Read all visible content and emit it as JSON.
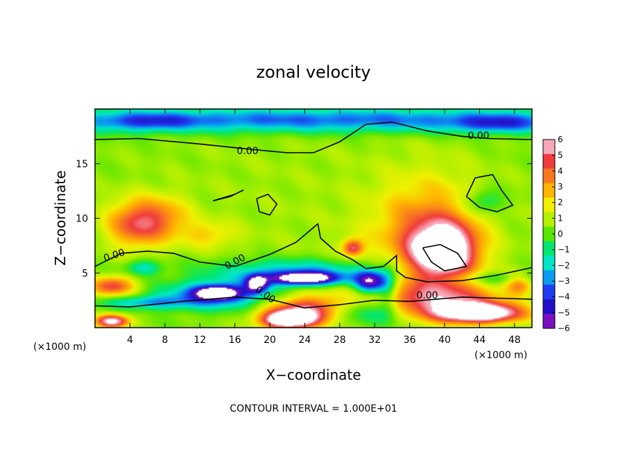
{
  "chart_data": {
    "type": "heatmap",
    "title": "zonal velocity",
    "xlabel": "X−coordinate",
    "ylabel": "Z−coordinate",
    "x_unit": "(×1000 m)",
    "y_unit": "(×1000 m)",
    "xlim": [
      0,
      50
    ],
    "ylim": [
      0,
      20
    ],
    "x_ticks": [
      4,
      8,
      12,
      16,
      20,
      24,
      28,
      32,
      36,
      40,
      44,
      48
    ],
    "y_ticks": [
      5,
      10,
      15
    ],
    "colorbar": {
      "range": [
        -6,
        6
      ],
      "ticks": [
        "6",
        "5",
        "4",
        "3",
        "2",
        "1",
        "0",
        "−1",
        "−2",
        "−3",
        "−4",
        "−5",
        "−6"
      ],
      "colors": [
        "#f7a8b8",
        "#f03c3c",
        "#f87a1e",
        "#ffb400",
        "#f0f000",
        "#b4f000",
        "#5ae600",
        "#00e670",
        "#00e6c8",
        "#0a9cf0",
        "#1e3cf0",
        "#2010c8",
        "#7a10c0"
      ]
    },
    "contour_labels": [
      "0.00",
      "0.00",
      "0.00",
      "0.00",
      "0.00",
      "0.00"
    ],
    "contour_interval_text": "CONTOUR INTERVAL = 1.000E+01",
    "blobs": [
      {
        "x": 25,
        "y": 11,
        "rx": 40,
        "ry": 16,
        "v": 0.8
      },
      {
        "x": 4.5,
        "y": 9.5,
        "rx": 3.2,
        "ry": 2.2,
        "v": 4.0
      },
      {
        "x": 8,
        "y": 10,
        "rx": 3,
        "ry": 2,
        "v": 2.5
      },
      {
        "x": 13,
        "y": 8.5,
        "rx": 3,
        "ry": 1.2,
        "v": 1.8
      },
      {
        "x": 38,
        "y": 8.5,
        "rx": 6,
        "ry": 5,
        "v": 3.5
      },
      {
        "x": 40,
        "y": 7.0,
        "rx": 3.6,
        "ry": 2.4,
        "v": 6.8
      },
      {
        "x": 39,
        "y": 2.5,
        "rx": 8,
        "ry": 1.6,
        "v": 4.5
      },
      {
        "x": 44,
        "y": 1.3,
        "rx": 5,
        "ry": 0.9,
        "v": 7.5
      },
      {
        "x": 25,
        "y": 1.6,
        "rx": 5,
        "ry": 1.3,
        "v": 6.0
      },
      {
        "x": 22,
        "y": 0.7,
        "rx": 3,
        "ry": 0.8,
        "v": 7.5
      },
      {
        "x": 2,
        "y": 3.8,
        "rx": 2.6,
        "ry": 0.9,
        "v": 4.5
      },
      {
        "x": 2,
        "y": 0.6,
        "rx": 2,
        "ry": 0.6,
        "v": 6.5
      },
      {
        "x": 29.5,
        "y": 7.3,
        "rx": 1.2,
        "ry": 0.8,
        "v": 4.5
      },
      {
        "x": 48.5,
        "y": 4.0,
        "rx": 1.5,
        "ry": 1,
        "v": 3.0
      },
      {
        "x": 25,
        "y": 19,
        "rx": 40,
        "ry": 1.1,
        "v": -4.2
      },
      {
        "x": 6,
        "y": 18.8,
        "rx": 5,
        "ry": 0.8,
        "v": -2.0
      },
      {
        "x": 46,
        "y": 18.6,
        "rx": 5,
        "ry": 0.8,
        "v": -2.5
      },
      {
        "x": 44.5,
        "y": 11.5,
        "rx": 2.2,
        "ry": 1.1,
        "v": -2.2
      },
      {
        "x": 5.5,
        "y": 5.5,
        "rx": 2,
        "ry": 0.7,
        "v": -2.5
      },
      {
        "x": 23,
        "y": 5.2,
        "rx": 10,
        "ry": 1.1,
        "v": -3.0
      },
      {
        "x": 24,
        "y": 4.5,
        "rx": 4,
        "ry": 0.6,
        "v": -8.0
      },
      {
        "x": 31.5,
        "y": 4.2,
        "rx": 1.8,
        "ry": 1.0,
        "v": -7.0
      },
      {
        "x": 14,
        "y": 3.0,
        "rx": 6,
        "ry": 1.3,
        "v": -4.5
      },
      {
        "x": 14,
        "y": 3.2,
        "rx": 2.5,
        "ry": 0.6,
        "v": -6.5
      },
      {
        "x": 6,
        "y": 2.3,
        "rx": 5,
        "ry": 0.6,
        "v": -3.0
      },
      {
        "x": 18.5,
        "y": 4.0,
        "rx": 1.3,
        "ry": 0.8,
        "v": -6.5
      },
      {
        "x": 30,
        "y": 1.5,
        "rx": 5,
        "ry": 1.2,
        "v": -3.8
      },
      {
        "x": 33.5,
        "y": 3.5,
        "rx": 1.2,
        "ry": 2.2,
        "v": -3.0
      },
      {
        "x": 46,
        "y": 4.5,
        "rx": 5,
        "ry": 0.6,
        "v": -1.8
      }
    ],
    "contours": [
      [
        [
          0,
          17.2
        ],
        [
          5,
          17.3
        ],
        [
          12,
          16.8
        ],
        [
          18,
          16.3
        ],
        [
          22,
          16.0
        ],
        [
          25,
          16.0
        ],
        [
          28,
          17.0
        ],
        [
          31,
          18.6
        ],
        [
          34,
          18.8
        ],
        [
          38,
          18.0
        ],
        [
          42,
          17.5
        ],
        [
          45,
          17.3
        ],
        [
          50,
          17.2
        ]
      ],
      [
        [
          0,
          5.6
        ],
        [
          3,
          6.8
        ],
        [
          6,
          7.0
        ],
        [
          9,
          6.8
        ],
        [
          12,
          6.0
        ],
        [
          16,
          5.6
        ],
        [
          20,
          6.7
        ],
        [
          23,
          7.8
        ],
        [
          25.5,
          9.5
        ],
        [
          25.8,
          8.2
        ],
        [
          27.5,
          7.0
        ],
        [
          29.5,
          6.2
        ],
        [
          31,
          5.4
        ],
        [
          33,
          5.6
        ],
        [
          34.5,
          6.6
        ],
        [
          34.5,
          5.2
        ],
        [
          35.5,
          4.6
        ],
        [
          38,
          4.2
        ],
        [
          42,
          4.3
        ],
        [
          46,
          4.8
        ],
        [
          50,
          5.5
        ]
      ],
      [
        [
          0,
          2.0
        ],
        [
          4,
          1.9
        ],
        [
          10,
          2.4
        ],
        [
          16,
          2.8
        ],
        [
          20,
          2.6
        ],
        [
          24,
          1.8
        ],
        [
          28,
          2.1
        ],
        [
          32,
          2.5
        ],
        [
          36,
          2.4
        ],
        [
          42,
          2.8
        ],
        [
          46,
          2.7
        ],
        [
          50,
          2.6
        ]
      ],
      [
        [
          42.5,
          12.0
        ],
        [
          43.5,
          13.7
        ],
        [
          45.5,
          14.0
        ],
        [
          46.5,
          12.6
        ],
        [
          47.8,
          11.2
        ],
        [
          46,
          10.6
        ],
        [
          44,
          11.0
        ],
        [
          42.5,
          12.0
        ]
      ],
      [
        [
          18.5,
          11.8
        ],
        [
          19.8,
          12.2
        ],
        [
          20.8,
          11.3
        ],
        [
          20,
          10.3
        ],
        [
          18.8,
          10.6
        ],
        [
          18.5,
          11.8
        ]
      ],
      [
        [
          13.5,
          11.6
        ],
        [
          16,
          12.2
        ],
        [
          17,
          12.6
        ],
        [
          15.5,
          12.0
        ],
        [
          13.5,
          11.6
        ]
      ],
      [
        [
          37.5,
          7.3
        ],
        [
          39.5,
          7.6
        ],
        [
          41.5,
          6.8
        ],
        [
          42.5,
          5.6
        ],
        [
          40,
          5.2
        ],
        [
          38.5,
          6.0
        ],
        [
          37.5,
          7.3
        ]
      ]
    ]
  }
}
